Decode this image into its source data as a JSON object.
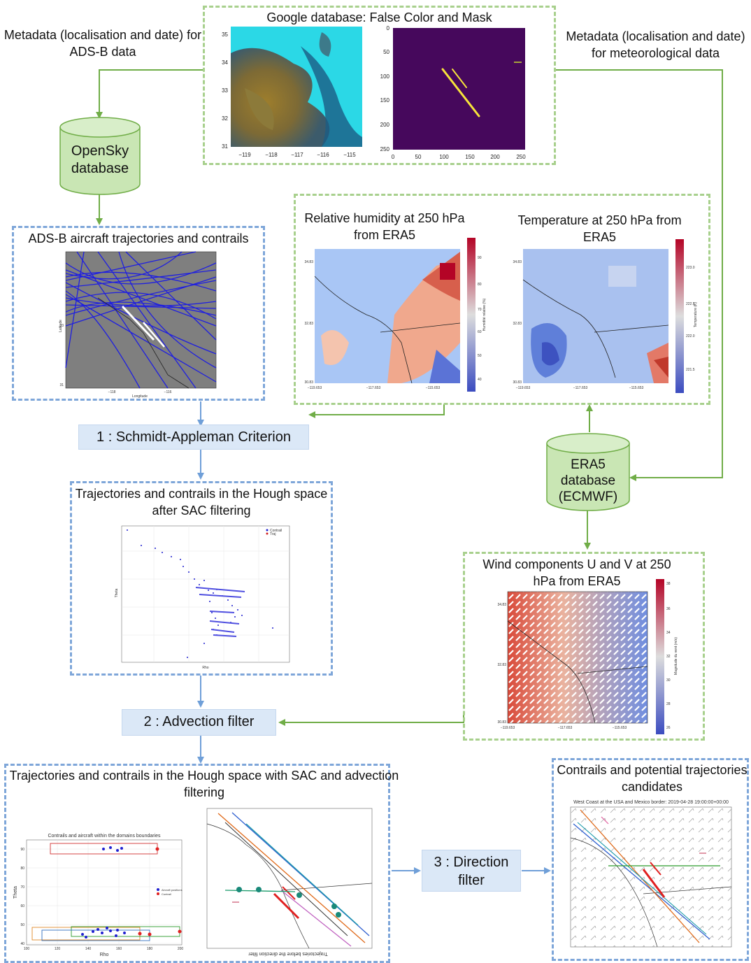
{
  "labels": {
    "meta_adsb": "Metadata (localisation and date) for ADS-B data",
    "meta_meteo": "Metadata (localisation and date) for meteorological data"
  },
  "databases": {
    "opensky": "OpenSky database",
    "era5": "ERA5 database (ECMWF)"
  },
  "panels": {
    "google": {
      "title": "Google database: False Color and Mask",
      "fc_yticks": [
        "35",
        "34",
        "33",
        "32",
        "31"
      ],
      "fc_xticks": [
        "−119",
        "−118",
        "−117",
        "−116",
        "−115"
      ],
      "mask_yticks": [
        "0",
        "50",
        "100",
        "150",
        "200",
        "250"
      ],
      "mask_xticks": [
        "0",
        "50",
        "100",
        "150",
        "200",
        "250"
      ]
    },
    "adsb": {
      "title": "ADS-B aircraft trajectories and contrails",
      "ylabel": "Latitude",
      "xlabel": "Longitude",
      "yticks": [
        "33",
        "31"
      ],
      "xticks": [
        "−118",
        "−116"
      ]
    },
    "humidity": {
      "title": "Relative humidity at 250 hPa from ERA5",
      "yticks": [
        "34.83",
        "32.83",
        "30.83"
      ],
      "xticks": [
        "−119.653",
        "−117.653",
        "−115.653"
      ],
      "cbar_ticks": [
        "90",
        "80",
        "70",
        "60",
        "50",
        "40"
      ],
      "cbar_label": "Humidité relative (%)"
    },
    "temperature": {
      "title": "Temperature at 250 hPa from ERA5",
      "yticks": [
        "34.83",
        "32.83",
        "30.83"
      ],
      "xticks": [
        "−119.653",
        "−117.653",
        "−115.653"
      ],
      "cbar_ticks": [
        "223.0",
        "222.5",
        "222.0",
        "221.5"
      ],
      "cbar_label": "Temperature (K)"
    },
    "hough_sac": {
      "title": "Trajectories and contrails in the Hough space after SAC filtering",
      "legend": [
        "Contrail",
        "Traj"
      ],
      "ylabel": "Theta",
      "xlabel": "Rho"
    },
    "wind": {
      "title": "Wind components U and V at 250 hPa from ERA5",
      "yticks": [
        "34.83",
        "32.83",
        "30.83"
      ],
      "xticks": [
        "−119.653",
        "−117.653",
        "−115.653"
      ],
      "cbar_ticks": [
        "38",
        "36",
        "34",
        "32",
        "30",
        "28",
        "26"
      ],
      "cbar_label": "Magnitude du vent (m/s)"
    },
    "hough_adv": {
      "title": "Trajectories and contrails in the Hough space with SAC and advection filtering",
      "chart_title": "Contrails and aircraft within the domains boundaries",
      "ylabel": "Theta",
      "xlabel": "Rho",
      "legend": [
        "Aircraft positions",
        "Contrail"
      ],
      "yticks": [
        "90",
        "80",
        "70",
        "60",
        "50",
        "40"
      ],
      "xticks": [
        "100",
        "120",
        "140",
        "160",
        "180",
        "200"
      ],
      "map_caption": "Trajectories before the direction filter"
    },
    "candidates": {
      "title": "Contrails and potential trajectories candidates",
      "subtitle": "West Coast at the USA and Mexico border: 2019-04-28 19:00:00+00:00"
    }
  },
  "steps": {
    "sac": "1 : Schmidt-Appleman Criterion",
    "advection": "2 : Advection filter",
    "direction": "3 : Direction filter"
  },
  "colors": {
    "green_border": "#a8d08d",
    "blue_border": "#7ea6d9",
    "arrow_green": "#70ad47",
    "arrow_blue": "#6f9fd8",
    "step_fill": "#dbe8f7",
    "db_fill": "#c9e6b4"
  }
}
